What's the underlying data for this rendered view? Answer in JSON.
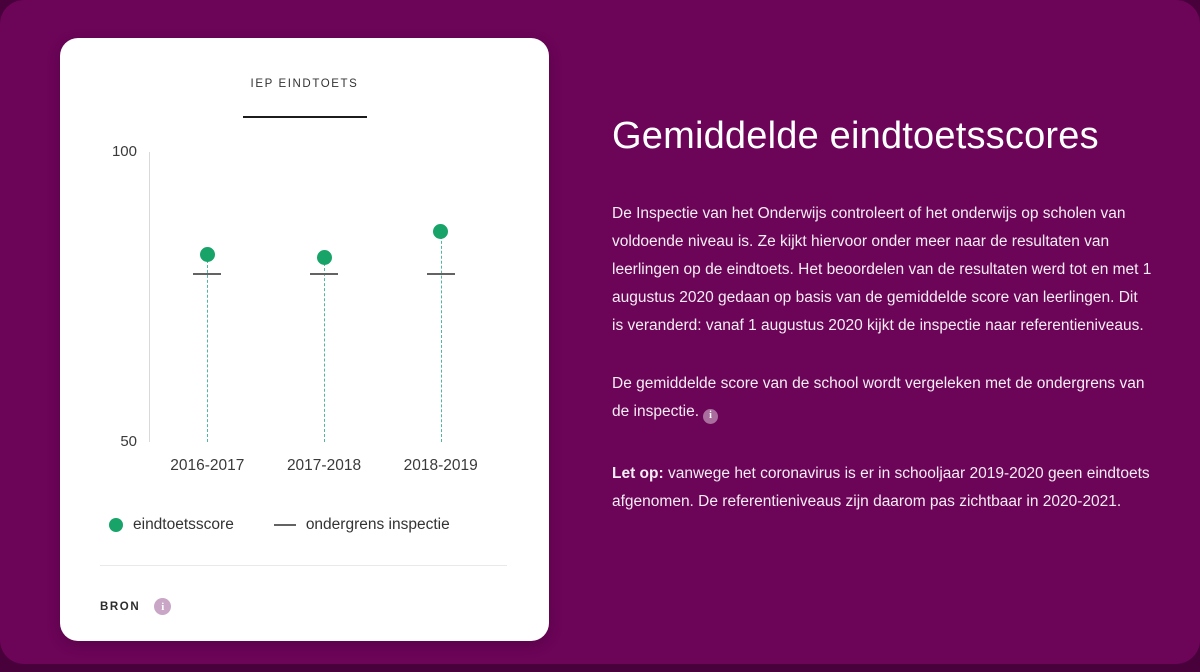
{
  "page": {
    "background": "#49013c",
    "panel_color": "#6c0458"
  },
  "card": {
    "tab_label": "IEP EINDTOETS",
    "source_label": "BRON",
    "info_icon_glyph": "i"
  },
  "chart_data": {
    "type": "scatter",
    "title": "IEP EINDTOETS",
    "categories": [
      "2016-2017",
      "2017-2018",
      "2018-2019"
    ],
    "series": [
      {
        "name": "eindtoetsscore",
        "marker": "dot",
        "color": "#18a468",
        "values": [
          82.3,
          81.8,
          86.3
        ]
      },
      {
        "name": "ondergrens inspectie",
        "marker": "dash",
        "color": "#636363",
        "values": [
          79,
          79,
          79
        ]
      }
    ],
    "ylim": [
      50,
      100
    ],
    "yticks": [
      100,
      50
    ],
    "dropline_color": "#52b5a0",
    "grid": false,
    "legend_position": "bottom"
  },
  "content": {
    "title": "Gemiddelde eindtoetsscores",
    "paragraph1": "De Inspectie van het Onderwijs controleert of het onderwijs op scholen van voldoende niveau is. Ze kijkt hiervoor onder meer naar de resultaten van leerlingen op de eindtoets. Het beoordelen van de resultaten werd tot en met 1 augustus 2020 gedaan op basis van de gemiddelde score van leerlingen. Dit is veranderd: vanaf 1 augustus 2020 kijkt de inspectie naar referentieniveaus.",
    "paragraph2": "De gemiddelde score van de school wordt vergeleken met de ondergrens van de inspectie.",
    "info_icon_glyph": "i",
    "warning_label": "Let op:",
    "warning_text": " vanwege het coronavirus is er in schooljaar 2019-2020 geen eindtoets afgenomen. De referentieniveaus zijn daarom pas zichtbaar in 2020-2021."
  }
}
